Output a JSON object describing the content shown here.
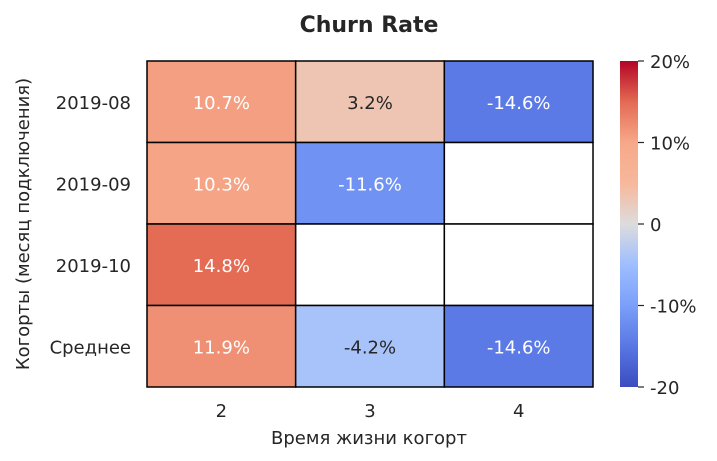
{
  "chart_data": {
    "type": "heatmap",
    "title": "Churn Rate",
    "xlabel": "Время жизни когорт",
    "ylabel": "Когорты (месяц подключения)",
    "x_categories": [
      "2",
      "3",
      "4"
    ],
    "y_categories": [
      "2019-08",
      "2019-09",
      "2019-10",
      "Среднее"
    ],
    "values": [
      [
        0.107,
        0.032,
        -0.146
      ],
      [
        0.103,
        -0.116,
        null
      ],
      [
        0.148,
        null,
        null
      ],
      [
        0.119,
        -0.042,
        -0.146
      ]
    ],
    "labels": [
      [
        "10.7%",
        "3.2%",
        "-14.6%"
      ],
      [
        "10.3%",
        "-11.6%",
        ""
      ],
      [
        "14.8%",
        "",
        ""
      ],
      [
        "11.9%",
        "-4.2%",
        "-14.6%"
      ]
    ],
    "colorbar": {
      "vmin": -0.2,
      "vmax": 0.2,
      "colormap": "coolwarm",
      "tick_values": [
        0.2,
        0.1,
        0,
        -0.1,
        -0.2
      ],
      "tick_labels": [
        "20%",
        "10%",
        "0",
        "-10%",
        "-20"
      ]
    },
    "missing_color": "#ffffff",
    "grid_line_color": "#000000"
  }
}
